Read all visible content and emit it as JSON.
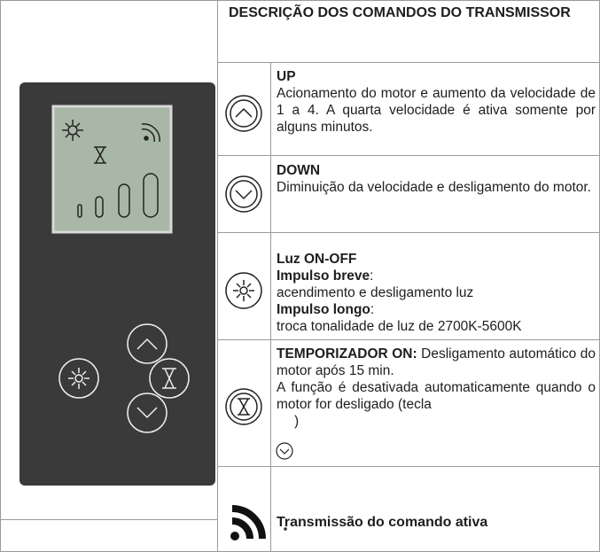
{
  "header": {
    "title": "DESCRIÇÃO DOS COMANDOS DO TRANSMISSOR"
  },
  "rows": [
    {
      "title": "UP",
      "text": "Acionamento do motor e aumento da velocidade de 1 a 4. A quarta velocidade é ativa somente por alguns minutos."
    },
    {
      "title": "DOWN",
      "text": "Diminuição da velocidade e desligamento do motor."
    },
    {
      "title": "Luz ON-OFF",
      "short_label": "Impulso breve",
      "short_text": "acendimento e desligamento luz",
      "long_label": "Impulso longo",
      "long_text": "troca tonalidade de luz de 2700K-5600K",
      "colon": ":"
    },
    {
      "title": "TEMPORIZADOR ON:",
      "text": "Desligamento automático do motor após 15 min.",
      "note": "A função é desativada automaticamente quando o motor for desligado (tecla",
      "note_end": ")"
    },
    {
      "title": "Transmissão do comando ativa"
    }
  ]
}
